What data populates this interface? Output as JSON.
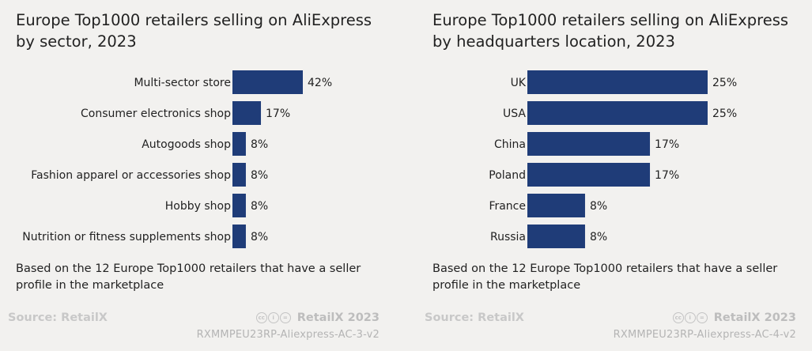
{
  "chart_data": [
    {
      "type": "bar",
      "orientation": "horizontal",
      "title": "Europe Top1000 retailers selling on AliExpress by sector, 2023",
      "categories": [
        "Multi-sector store",
        "Consumer electronics shop",
        "Autogoods shop",
        "Fashion apparel or accessories shop",
        "Hobby shop",
        "Nutrition or fitness supplements shop"
      ],
      "values": [
        42,
        17,
        8,
        8,
        8,
        8
      ],
      "value_labels": [
        "42%",
        "17%",
        "8%",
        "8%",
        "8%",
        "8%"
      ],
      "unit": "%",
      "xlim": [
        0,
        100
      ],
      "bar_color": "#1f3c78",
      "note": "Based on the 12 Europe Top1000 retailers that have a seller profile in the marketplace",
      "source": "Source: RetailX",
      "brand": "RetailX 2023",
      "code": "RXMMPEU23RP-Aliexpress-AC-3-v2"
    },
    {
      "type": "bar",
      "orientation": "horizontal",
      "title": "Europe Top1000 retailers selling on AliExpress by headquarters location, 2023",
      "categories": [
        "UK",
        "USA",
        "China",
        "Poland",
        "France",
        "Russia"
      ],
      "values": [
        25,
        25,
        17,
        17,
        8,
        8
      ],
      "value_labels": [
        "25%",
        "25%",
        "17%",
        "17%",
        "8%",
        "8%"
      ],
      "unit": "%",
      "xlim": [
        0,
        100
      ],
      "bar_color": "#1f3c78",
      "note": "Based on the 12 Europe Top1000 retailers that have a seller profile in the marketplace",
      "source": "Source: RetailX",
      "brand": "RetailX 2023",
      "code": "RXMMPEU23RP-Aliexpress-AC-4-v2"
    }
  ],
  "cc_icons": [
    "cc-icon",
    "by-icon",
    "nd-icon"
  ]
}
